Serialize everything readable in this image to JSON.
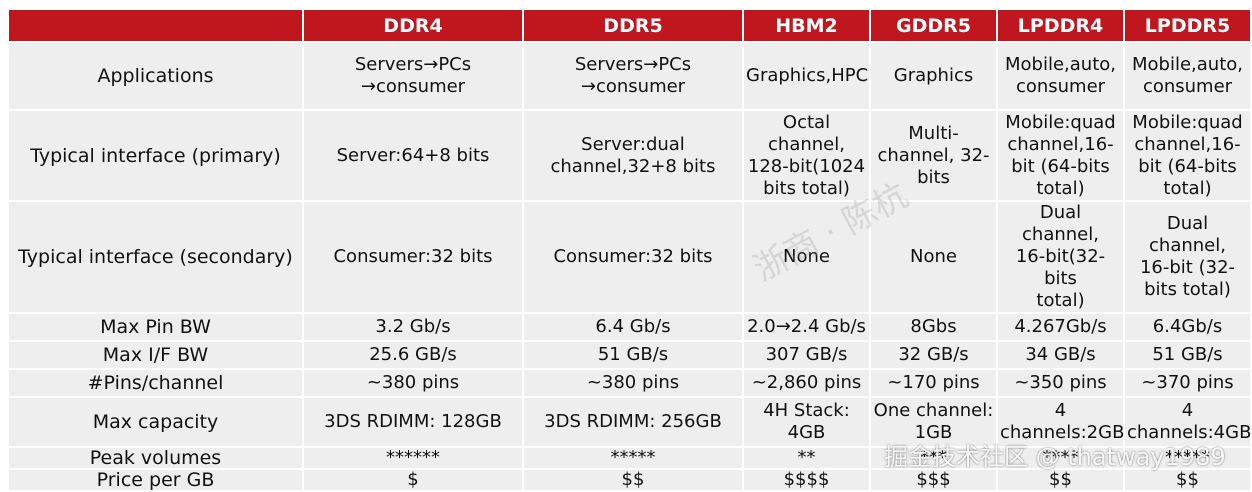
{
  "columns": [
    "",
    "DDR4",
    "DDR5",
    "HBM2",
    "GDDR5",
    "LPDDR4",
    "LPDDR5"
  ],
  "rows": [
    {
      "key": "r-app",
      "label": "Applications",
      "cells": [
        "Servers→PCs\n→consumer",
        "Servers→PCs\n→consumer",
        "Graphics,HPC",
        "Graphics",
        "Mobile,auto,\nconsumer",
        "Mobile,auto,\nconsumer"
      ]
    },
    {
      "key": "r-prim",
      "label": "Typical interface (primary)",
      "cells": [
        "Server:64+8 bits",
        "Server:dual\nchannel,32+8 bits",
        "Octal channel,\n128-bit(1024\nbits total)",
        "Multi-\nchannel, 32-\nbits",
        "Mobile:quad\nchannel,16-\nbit (64-bits\ntotal)",
        "Mobile:quad\nchannel,16-\nbit (64-bits\ntotal)"
      ]
    },
    {
      "key": "r-sec",
      "label": "Typical interface (secondary)",
      "cells": [
        "Consumer:32 bits",
        "Consumer:32 bits",
        "None",
        "None",
        "Dual channel,\n16-bit(32-bits\ntotal)",
        "Dual channel,\n16-bit (32-\nbits total)"
      ]
    },
    {
      "key": "r-pin",
      "label": "Max Pin BW",
      "cells": [
        "3.2 Gb/s",
        "6.4 Gb/s",
        "2.0→2.4 Gb/s",
        "8Gbs",
        "4.267Gb/s",
        "6.4Gb/s"
      ]
    },
    {
      "key": "r-ifbw",
      "label": "Max I/F BW",
      "cells": [
        "25.6 GB/s",
        "51 GB/s",
        "307 GB/s",
        "32 GB/s",
        "34 GB/s",
        "51 GB/s"
      ]
    },
    {
      "key": "r-pch",
      "label": "#Pins/channel",
      "cells": [
        "~380 pins",
        "~380 pins",
        "~2,860 pins",
        "~170 pins",
        "~350 pins",
        "~370 pins"
      ]
    },
    {
      "key": "r-cap",
      "label": "Max capacity",
      "cells": [
        "3DS RDIMM: 128GB",
        "3DS RDIMM: 256GB",
        "4H Stack: 4GB",
        "One channel:\n1GB",
        "4\nchannels:2GB",
        "4\nchannels:4GB"
      ]
    },
    {
      "key": "r-peak",
      "label": "Peak volumes",
      "cells": [
        "******",
        "*****",
        "**",
        "***",
        "****",
        "*****"
      ]
    },
    {
      "key": "r-price",
      "label": "Price per GB",
      "cells": [
        "$",
        "$$",
        "$$$$",
        "$$$",
        "$$",
        "$$"
      ]
    }
  ],
  "watermarks": {
    "center": "浙商 · 陈杭",
    "corner": "掘金技术社区 @ thatway1989"
  },
  "colors": {
    "header_bg": "#c0161d",
    "cell_bg": "#efeeee",
    "header_text": "#ffffff"
  }
}
